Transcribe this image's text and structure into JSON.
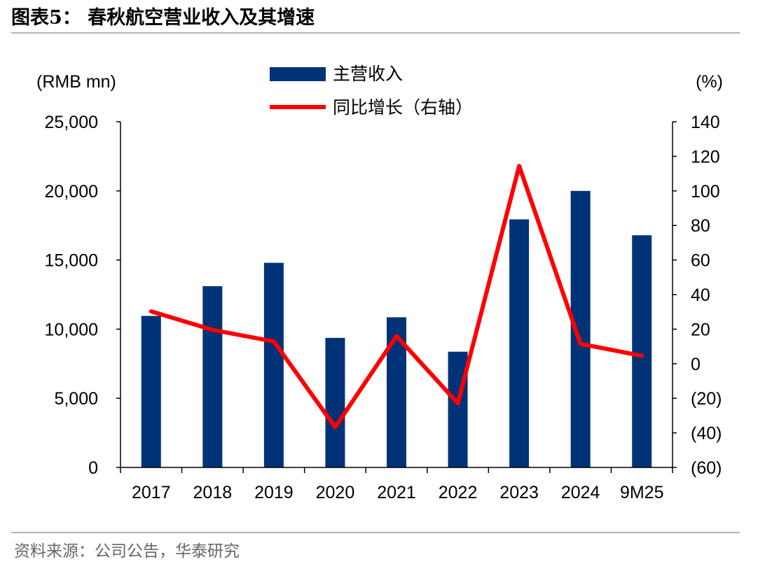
{
  "header": {
    "title": "图表5：  春秋航空营业收入及其增速"
  },
  "footer": {
    "source": "资料来源：公司公告，华泰研究"
  },
  "colors": {
    "bar": "#003277",
    "line": "#ff0000",
    "rule": "#aab4c4"
  },
  "chart_data": {
    "type": "bar+line",
    "categories": [
      "2017",
      "2018",
      "2019",
      "2020",
      "2021",
      "2022",
      "2023",
      "2024",
      "9M25"
    ],
    "series": [
      {
        "name": "主营收入",
        "type": "bar",
        "axis": "left",
        "values": [
          10960,
          13110,
          14800,
          9370,
          10860,
          8370,
          17940,
          20000,
          16790
        ]
      },
      {
        "name": "同比增长（右轴）",
        "type": "line",
        "axis": "right",
        "values": [
          30.3,
          19.6,
          12.9,
          -36.7,
          16.0,
          -22.9,
          114.4,
          11.5,
          4.6
        ]
      }
    ],
    "ylabel_left": "(RMB mn)",
    "ylabel_right": "(%)",
    "ylim_left": [
      0,
      25000
    ],
    "ylim_right": [
      -60,
      140
    ],
    "yticks_left": [
      "0",
      "5,000",
      "10,000",
      "15,000",
      "20,000",
      "25,000"
    ],
    "yticks_right": [
      "(60)",
      "(40)",
      "(20)",
      "0",
      "20",
      "40",
      "60",
      "80",
      "100",
      "120",
      "140"
    ],
    "grid": false,
    "legend_position": "top-center"
  }
}
